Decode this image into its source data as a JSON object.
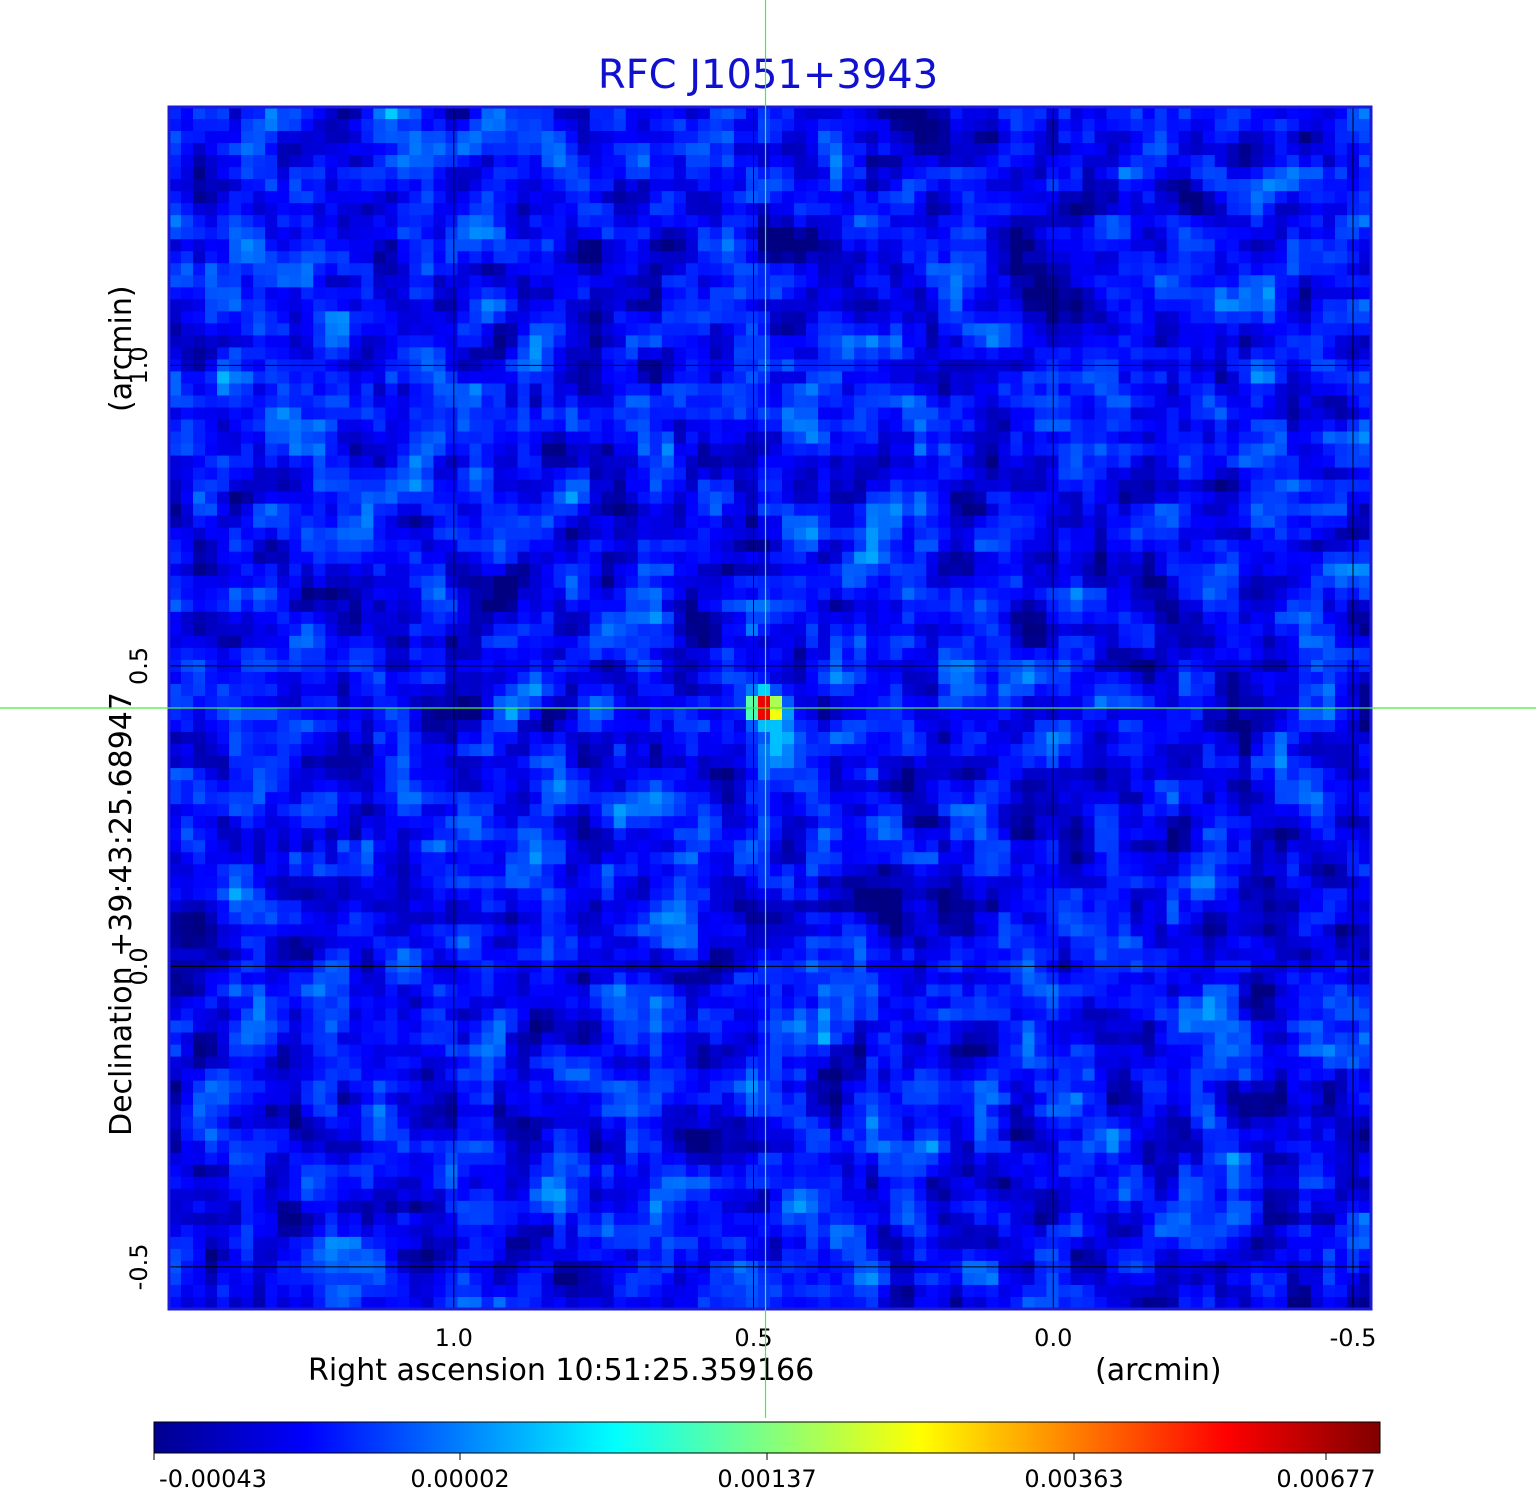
{
  "chart_data": {
    "type": "heatmap",
    "title": "RFC J1051+3943",
    "xlabel": "Right ascension  10:51:25.359166",
    "xunit": "(arcmin)",
    "ylabel": "Declination  +39:43:25.68947",
    "yunit": "(arcmin)",
    "x_ticks": [
      "1.0",
      "0.5",
      "0.0",
      "-0.5"
    ],
    "x_tick_values": [
      1.0,
      0.5,
      0.0,
      -0.5
    ],
    "y_ticks": [
      "1.0",
      "0.5",
      "0.0",
      "-0.5"
    ],
    "y_tick_values": [
      1.0,
      0.5,
      0.0,
      -0.5
    ],
    "xlim": [
      1.475,
      -0.53
    ],
    "ylim": [
      -0.57,
      1.43
    ],
    "grid": true,
    "crosshair": [
      0.48,
      0.43
    ],
    "colorbar": {
      "ticks": [
        "-0.00043",
        "0.00002",
        "0.00137",
        "0.00363",
        "0.00677"
      ],
      "range": [
        -0.00043,
        0.00677
      ]
    },
    "source": {
      "x": 0.48,
      "y": 0.43,
      "peak": 0.00677
    },
    "background_level": 2e-05,
    "colormap": "jet"
  },
  "colors": {
    "title": "#1010d0",
    "frame": "#1a1ad8",
    "crosshair": "#44ee44",
    "grid": "#000000"
  }
}
